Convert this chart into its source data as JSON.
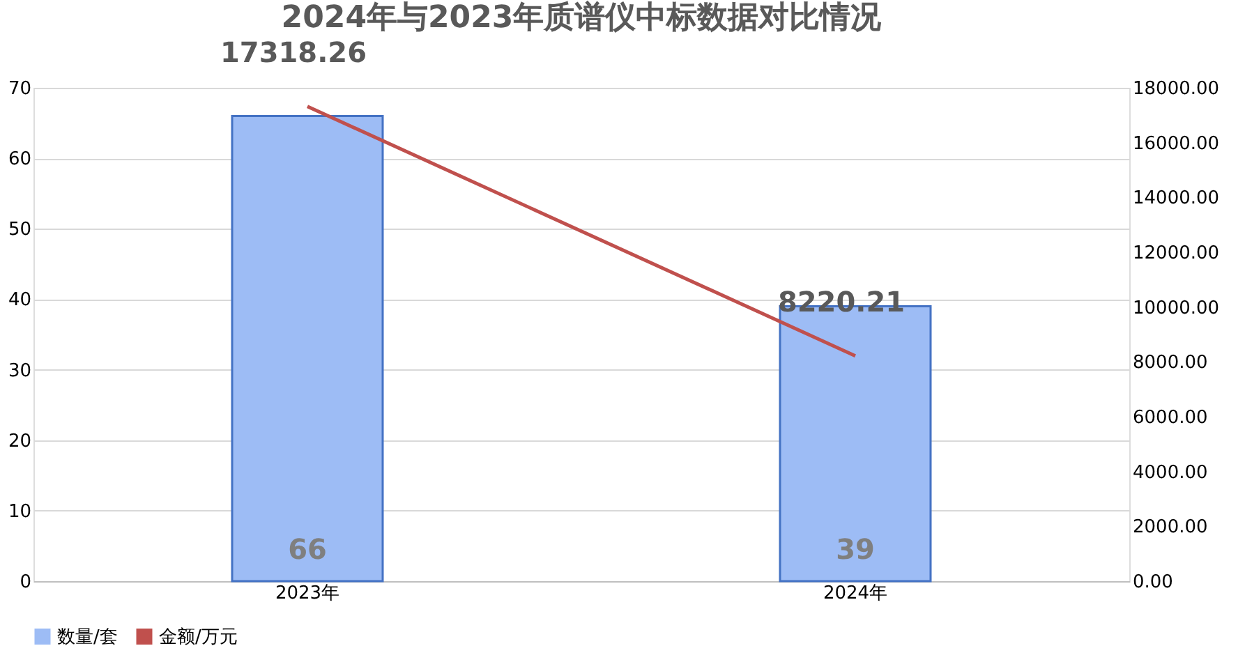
{
  "chart_data": {
    "type": "bar",
    "title": "2024年与2023年质谱仪中标数据对比情况",
    "categories": [
      "2023年",
      "2024年"
    ],
    "series": [
      {
        "name": "数量/套",
        "color": "#9dbcf5",
        "values": [
          66,
          39
        ]
      },
      {
        "name": "金额/万元",
        "type": "line",
        "axis": "y2",
        "color": "#c0504d",
        "values": [
          17318.26,
          8220.21
        ]
      }
    ],
    "ylim": [
      0,
      70
    ],
    "yticks": [
      0,
      10,
      20,
      30,
      40,
      50,
      60,
      70
    ],
    "y2lim": [
      0,
      18000
    ],
    "y2ticks": [
      {
        "value": 0,
        "label": "0.00"
      },
      {
        "value": 2000,
        "label": "2000.00"
      },
      {
        "value": 4000,
        "label": "4000.00"
      },
      {
        "value": 6000,
        "label": "6000.00"
      },
      {
        "value": 8000,
        "label": "8000.00"
      },
      {
        "value": 10000,
        "label": "10000.00"
      },
      {
        "value": 12000,
        "label": "12000.00"
      },
      {
        "value": 14000,
        "label": "14000.00"
      },
      {
        "value": 16000,
        "label": "16000.00"
      },
      {
        "value": 18000,
        "label": "18000.00"
      }
    ],
    "data_labels": true,
    "grid": "y",
    "legend": "bottom",
    "marker": "none",
    "line_style": "solid"
  }
}
